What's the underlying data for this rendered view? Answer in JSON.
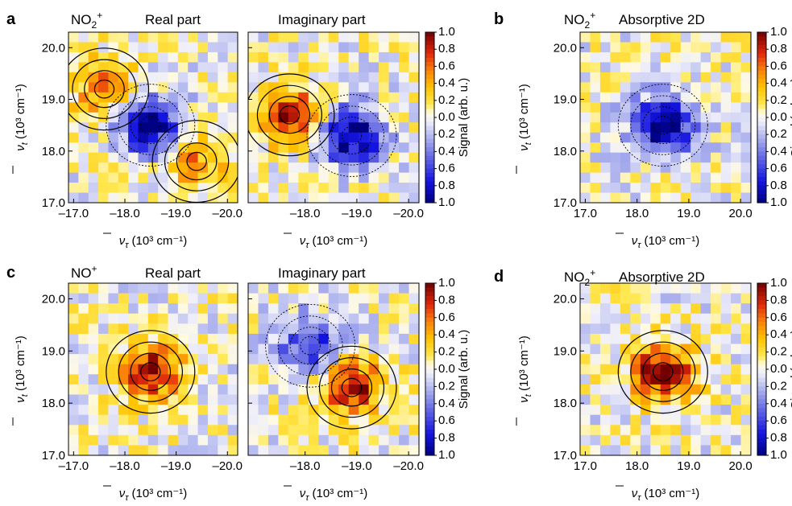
{
  "colors": {
    "positive_max": "#7a0000",
    "mid": "#ffffff",
    "negative_max": "#00007a"
  },
  "colorbar": {
    "label": "Signal (arb. u.)",
    "ticks": [
      "1.0",
      "0.8",
      "0.6",
      "0.4",
      "0.2",
      "0.0",
      "0.2",
      "0.4",
      "0.6",
      "0.8",
      "1.0"
    ]
  },
  "panels": [
    {
      "letter": "a",
      "molecule": "NO",
      "sub": "2",
      "sup": "+",
      "subtitles": [
        "Real part",
        "Imaginary part"
      ]
    },
    {
      "letter": "b",
      "molecule": "NO",
      "sub": "2",
      "sup": "+",
      "subtitles": [
        "Absorptive 2D"
      ]
    },
    {
      "letter": "c",
      "molecule": "NO",
      "sub": "",
      "sup": "+",
      "subtitles": [
        "Real part",
        "Imaginary part"
      ]
    },
    {
      "letter": "d",
      "molecule": "NO",
      "sub": "2",
      "sup": "+",
      "subtitles": [
        "Absorptive 2D"
      ]
    }
  ],
  "axis": {
    "y_label_unit": "(10³ cm⁻¹)",
    "x_label_unit": "(10³ cm⁻¹)",
    "y_ticks": [
      "20.0",
      "19.0",
      "18.0",
      "17.0"
    ],
    "x_ticks_neg": [
      "–17.0",
      "–18.0",
      "–19.0",
      "–20.0"
    ],
    "x_ticks_neg_short": [
      "–18.0",
      "–19.0",
      "–20.0"
    ],
    "x_ticks_pos": [
      "17.0",
      "18.0",
      "19.0",
      "20.0"
    ]
  },
  "chart_data": [
    {
      "type": "heatmap",
      "panel": "a",
      "title": "Real part",
      "series_label": "NO2+",
      "xlim": [
        -16.9,
        -20.2
      ],
      "ylim": [
        17.0,
        20.3
      ],
      "clim": [
        -1.0,
        1.0
      ],
      "features": [
        {
          "x": -18.5,
          "y": 18.5,
          "amplitude": -1.0
        },
        {
          "x": -17.6,
          "y": 19.2,
          "amplitude": 0.6
        },
        {
          "x": -19.4,
          "y": 17.8,
          "amplitude": 0.5
        }
      ]
    },
    {
      "type": "heatmap",
      "panel": "a",
      "title": "Imaginary part",
      "series_label": "NO2+",
      "xlim": [
        -16.9,
        -20.2
      ],
      "ylim": [
        17.0,
        20.3
      ],
      "clim": [
        -1.0,
        1.0
      ],
      "features": [
        {
          "x": -17.7,
          "y": 18.7,
          "amplitude": 0.9
        },
        {
          "x": -18.9,
          "y": 18.3,
          "amplitude": -1.0
        }
      ]
    },
    {
      "type": "heatmap",
      "panel": "b",
      "title": "Absorptive 2D",
      "series_label": "NO2+",
      "xlim": [
        16.9,
        20.2
      ],
      "ylim": [
        17.0,
        20.3
      ],
      "clim": [
        -1.0,
        1.0
      ],
      "features": [
        {
          "x": 18.5,
          "y": 18.5,
          "amplitude": -1.0
        }
      ]
    },
    {
      "type": "heatmap",
      "panel": "c",
      "title": "Real part",
      "series_label": "NO+",
      "xlim": [
        -16.9,
        -20.2
      ],
      "ylim": [
        17.0,
        20.3
      ],
      "clim": [
        -1.0,
        1.0
      ],
      "features": [
        {
          "x": -18.5,
          "y": 18.6,
          "amplitude": 0.9
        }
      ]
    },
    {
      "type": "heatmap",
      "panel": "c",
      "title": "Imaginary part",
      "series_label": "NO+",
      "xlim": [
        -16.9,
        -20.2
      ],
      "ylim": [
        17.0,
        20.3
      ],
      "clim": [
        -1.0,
        1.0
      ],
      "features": [
        {
          "x": -18.9,
          "y": 18.3,
          "amplitude": 0.9
        },
        {
          "x": -18.1,
          "y": 19.1,
          "amplitude": -0.7
        }
      ]
    },
    {
      "type": "heatmap",
      "panel": "d",
      "title": "Absorptive 2D",
      "series_label": "NO2+",
      "xlim": [
        16.9,
        20.2
      ],
      "ylim": [
        17.0,
        20.3
      ],
      "clim": [
        -1.0,
        1.0
      ],
      "features": [
        {
          "x": 18.5,
          "y": 18.6,
          "amplitude": 1.0
        }
      ]
    }
  ]
}
